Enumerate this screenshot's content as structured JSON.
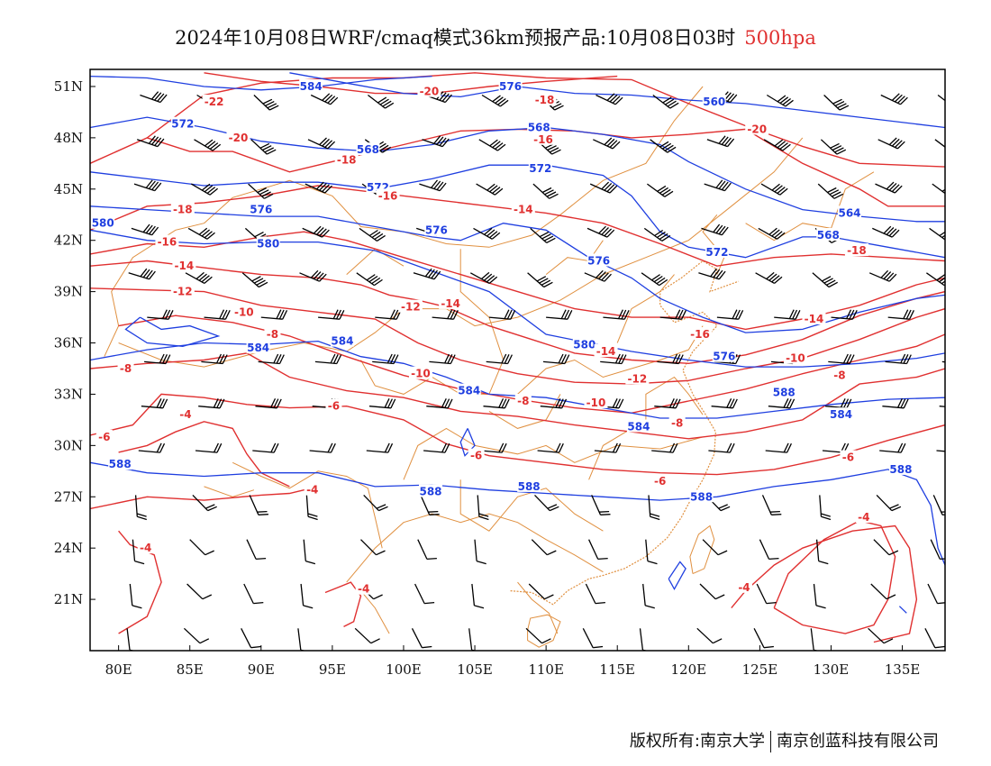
{
  "header": {
    "title": "2024年10月08日WRF/cmaq模式36km预报产品:10月08日03时",
    "level": "500hpa"
  },
  "footer": {
    "copyright": "版权所有:南京大学",
    "company": "南京创蓝科技有限公司"
  },
  "map": {
    "lon_range": [
      78,
      138
    ],
    "lat_range": [
      18,
      52
    ],
    "lon_ticks": [
      "80E",
      "85E",
      "90E",
      "95E",
      "100E",
      "105E",
      "110E",
      "115E",
      "120E",
      "125E",
      "130E",
      "135E"
    ],
    "lat_ticks": [
      "51N",
      "48N",
      "45N",
      "42N",
      "39N",
      "36N",
      "33N",
      "30N",
      "27N",
      "24N",
      "21N"
    ],
    "colors": {
      "height_contour": "#1f3fe0",
      "temperature_contour": "#e03030",
      "boundaries": "#e09040",
      "wind_barbs": "#000000"
    },
    "height_labels": [
      {
        "text": "584",
        "lon": 93.5,
        "lat": 51.0
      },
      {
        "text": "576",
        "lon": 107.5,
        "lat": 51.0
      },
      {
        "text": "560",
        "lon": 121.8,
        "lat": 50.1
      },
      {
        "text": "572",
        "lon": 84.5,
        "lat": 48.8
      },
      {
        "text": "568",
        "lon": 97.5,
        "lat": 47.3
      },
      {
        "text": "568",
        "lon": 109.5,
        "lat": 48.6
      },
      {
        "text": "572",
        "lon": 98.2,
        "lat": 45.1
      },
      {
        "text": "572",
        "lon": 109.6,
        "lat": 46.2
      },
      {
        "text": "576",
        "lon": 90.0,
        "lat": 43.8
      },
      {
        "text": "576",
        "lon": 102.3,
        "lat": 42.6
      },
      {
        "text": "580",
        "lon": 78.9,
        "lat": 43.0
      },
      {
        "text": "580",
        "lon": 90.5,
        "lat": 41.8
      },
      {
        "text": "576",
        "lon": 113.7,
        "lat": 40.8
      },
      {
        "text": "572",
        "lon": 122.0,
        "lat": 41.3
      },
      {
        "text": "564",
        "lon": 131.3,
        "lat": 43.6
      },
      {
        "text": "568",
        "lon": 129.8,
        "lat": 42.3
      },
      {
        "text": "584",
        "lon": 89.8,
        "lat": 35.7
      },
      {
        "text": "584",
        "lon": 95.7,
        "lat": 36.1
      },
      {
        "text": "580",
        "lon": 112.7,
        "lat": 35.9
      },
      {
        "text": "576",
        "lon": 122.5,
        "lat": 35.2
      },
      {
        "text": "588",
        "lon": 126.7,
        "lat": 33.1
      },
      {
        "text": "584",
        "lon": 104.6,
        "lat": 33.2
      },
      {
        "text": "584",
        "lon": 116.5,
        "lat": 31.1
      },
      {
        "text": "584",
        "lon": 130.7,
        "lat": 31.8
      },
      {
        "text": "588",
        "lon": 80.1,
        "lat": 28.9
      },
      {
        "text": "588",
        "lon": 101.9,
        "lat": 27.3
      },
      {
        "text": "588",
        "lon": 108.8,
        "lat": 27.6
      },
      {
        "text": "588",
        "lon": 120.9,
        "lat": 27.0
      },
      {
        "text": "588",
        "lon": 134.9,
        "lat": 28.6
      }
    ],
    "temperature_labels": [
      {
        "text": "-22",
        "lon": 86.7,
        "lat": 50.1
      },
      {
        "text": "-20",
        "lon": 101.8,
        "lat": 50.7
      },
      {
        "text": "-18",
        "lon": 109.9,
        "lat": 50.2
      },
      {
        "text": "-20",
        "lon": 88.4,
        "lat": 48.0
      },
      {
        "text": "-16",
        "lon": 109.8,
        "lat": 47.9
      },
      {
        "text": "-20",
        "lon": 124.8,
        "lat": 48.5
      },
      {
        "text": "-18",
        "lon": 96.0,
        "lat": 46.7
      },
      {
        "text": "-16",
        "lon": 98.9,
        "lat": 44.6
      },
      {
        "text": "-14",
        "lon": 108.4,
        "lat": 43.8
      },
      {
        "text": "-18",
        "lon": 84.5,
        "lat": 43.8
      },
      {
        "text": "-16",
        "lon": 83.4,
        "lat": 41.9
      },
      {
        "text": "-14",
        "lon": 84.6,
        "lat": 40.5
      },
      {
        "text": "-18",
        "lon": 131.8,
        "lat": 41.4
      },
      {
        "text": "-12",
        "lon": 84.5,
        "lat": 39.0
      },
      {
        "text": "-10",
        "lon": 88.8,
        "lat": 37.8
      },
      {
        "text": "-8",
        "lon": 90.8,
        "lat": 36.5
      },
      {
        "text": "-12",
        "lon": 100.5,
        "lat": 38.1
      },
      {
        "text": "-14",
        "lon": 103.3,
        "lat": 38.3
      },
      {
        "text": "-16",
        "lon": 120.8,
        "lat": 36.5
      },
      {
        "text": "-14",
        "lon": 128.8,
        "lat": 37.4
      },
      {
        "text": "-14",
        "lon": 114.2,
        "lat": 35.5
      },
      {
        "text": "-12",
        "lon": 116.4,
        "lat": 33.9
      },
      {
        "text": "-10",
        "lon": 101.2,
        "lat": 34.2
      },
      {
        "text": "-10",
        "lon": 127.5,
        "lat": 35.1
      },
      {
        "text": "-8",
        "lon": 80.5,
        "lat": 34.5
      },
      {
        "text": "-8",
        "lon": 108.4,
        "lat": 32.6
      },
      {
        "text": "-10",
        "lon": 113.5,
        "lat": 32.5
      },
      {
        "text": "-8",
        "lon": 119.2,
        "lat": 31.3
      },
      {
        "text": "-8",
        "lon": 130.6,
        "lat": 34.1
      },
      {
        "text": "-6",
        "lon": 95.1,
        "lat": 32.3
      },
      {
        "text": "-4",
        "lon": 84.7,
        "lat": 31.8
      },
      {
        "text": "-6",
        "lon": 79.0,
        "lat": 30.5
      },
      {
        "text": "-6",
        "lon": 105.1,
        "lat": 29.4
      },
      {
        "text": "-6",
        "lon": 131.2,
        "lat": 29.3
      },
      {
        "text": "-6",
        "lon": 118.0,
        "lat": 27.9
      },
      {
        "text": "-4",
        "lon": 93.6,
        "lat": 27.4
      },
      {
        "text": "-4",
        "lon": 132.3,
        "lat": 25.8
      },
      {
        "text": "-4",
        "lon": 81.9,
        "lat": 24.0
      },
      {
        "text": "-4",
        "lon": 97.2,
        "lat": 21.6
      },
      {
        "text": "-4",
        "lon": 123.9,
        "lat": 21.7
      }
    ]
  }
}
